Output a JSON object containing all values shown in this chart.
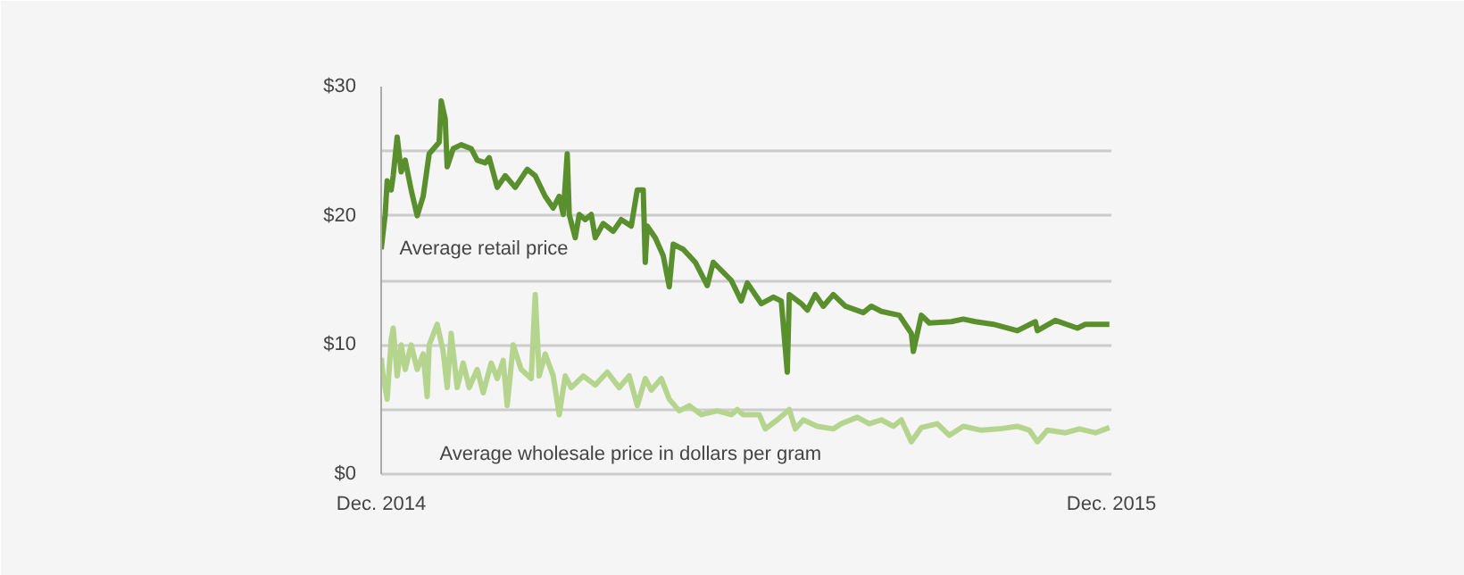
{
  "chart_data": {
    "type": "line",
    "xlim": [
      "2014-12-01",
      "2015-12-01"
    ],
    "xticks": [
      {
        "value": "2014-12-01",
        "label": "Dec. 2014"
      },
      {
        "value": "2015-12-01",
        "label": "Dec. 2015"
      }
    ],
    "ylim": [
      0,
      30
    ],
    "yticks": [
      {
        "value": 0,
        "label": "$0"
      },
      {
        "value": 5,
        "label": null
      },
      {
        "value": 10,
        "label": "$10"
      },
      {
        "value": 15,
        "label": null
      },
      {
        "value": 20,
        "label": "$20"
      },
      {
        "value": 25,
        "label": null
      },
      {
        "value": 30,
        "label": "$30"
      }
    ],
    "grid": "y",
    "marker": "none",
    "line_style": "solid",
    "series": [
      {
        "name": "Average retail price",
        "color": "#5a8f2e",
        "x": [
          "2014-12-01",
          "2014-12-03",
          "2014-12-04",
          "2014-12-06",
          "2014-12-07",
          "2014-12-09",
          "2014-12-11",
          "2014-12-13",
          "2014-12-16",
          "2014-12-19",
          "2014-12-22",
          "2014-12-25",
          "2014-12-30",
          "2014-12-31",
          "2015-01-02",
          "2015-01-03",
          "2015-01-06",
          "2015-01-10",
          "2015-01-15",
          "2015-01-18",
          "2015-01-22",
          "2015-01-24",
          "2015-01-28",
          "2015-02-01",
          "2015-02-06",
          "2015-02-12",
          "2015-02-16",
          "2015-02-21",
          "2015-02-25",
          "2015-02-28",
          "2015-03-02",
          "2015-03-04",
          "2015-03-05",
          "2015-03-08",
          "2015-03-10",
          "2015-03-13",
          "2015-03-16",
          "2015-03-18",
          "2015-03-22",
          "2015-03-27",
          "2015-03-31",
          "2015-04-05",
          "2015-04-08",
          "2015-04-11",
          "2015-04-12",
          "2015-04-13",
          "2015-04-17",
          "2015-04-21",
          "2015-04-24",
          "2015-04-26",
          "2015-05-01",
          "2015-05-07",
          "2015-05-13",
          "2015-05-16",
          "2015-05-25",
          "2015-05-30",
          "2015-06-02",
          "2015-06-09",
          "2015-06-15",
          "2015-06-19",
          "2015-06-22",
          "2015-06-23",
          "2015-06-29",
          "2015-07-02",
          "2015-07-06",
          "2015-07-10",
          "2015-07-15",
          "2015-07-21",
          "2015-07-30",
          "2015-08-03",
          "2015-08-08",
          "2015-08-17",
          "2015-08-23",
          "2015-08-24",
          "2015-08-28",
          "2015-09-01",
          "2015-09-12",
          "2015-09-18",
          "2015-09-24",
          "2015-10-03",
          "2015-10-15",
          "2015-10-24",
          "2015-10-25",
          "2015-11-03",
          "2015-11-14",
          "2015-11-18",
          "2015-11-30"
        ],
        "values": [
          17.4,
          20.1,
          22.7,
          22.0,
          23.1,
          26.1,
          23.4,
          24.3,
          22.0,
          20.0,
          21.5,
          24.8,
          25.7,
          28.9,
          27.5,
          23.8,
          25.2,
          25.5,
          25.2,
          24.3,
          24.1,
          24.5,
          22.2,
          23.1,
          22.2,
          23.6,
          23.1,
          21.5,
          20.6,
          21.5,
          20.1,
          24.8,
          20.1,
          18.3,
          20.1,
          19.7,
          20.1,
          18.3,
          19.4,
          18.8,
          19.7,
          19.2,
          22.0,
          22.0,
          16.4,
          19.2,
          18.3,
          16.9,
          14.5,
          17.8,
          17.4,
          16.4,
          14.6,
          16.4,
          15.0,
          13.4,
          14.8,
          13.2,
          13.7,
          13.4,
          7.9,
          13.9,
          13.2,
          12.7,
          13.9,
          13.0,
          13.9,
          13.0,
          12.5,
          13.0,
          12.6,
          12.3,
          10.9,
          9.5,
          12.3,
          11.7,
          11.8,
          12.0,
          11.8,
          11.6,
          11.1,
          11.8,
          11.1,
          11.9,
          11.3,
          11.6,
          11.6
        ]
      },
      {
        "name": "Average wholesale price in dollars per gram",
        "color": "#b5d58e",
        "x": [
          "2014-12-01",
          "2014-12-02",
          "2014-12-04",
          "2014-12-06",
          "2014-12-07",
          "2014-12-09",
          "2014-12-11",
          "2014-12-13",
          "2014-12-16",
          "2014-12-19",
          "2014-12-22",
          "2014-12-24",
          "2014-12-25",
          "2014-12-29",
          "2015-01-01",
          "2015-01-03",
          "2015-01-05",
          "2015-01-08",
          "2015-01-11",
          "2015-01-14",
          "2015-01-18",
          "2015-01-21",
          "2015-01-25",
          "2015-01-28",
          "2015-01-31",
          "2015-02-02",
          "2015-02-05",
          "2015-02-09",
          "2015-02-14",
          "2015-02-16",
          "2015-02-18",
          "2015-02-21",
          "2015-02-25",
          "2015-02-28",
          "2015-03-03",
          "2015-03-06",
          "2015-03-12",
          "2015-03-18",
          "2015-03-24",
          "2015-03-30",
          "2015-04-04",
          "2015-04-08",
          "2015-04-12",
          "2015-04-15",
          "2015-04-20",
          "2015-04-24",
          "2015-04-29",
          "2015-05-04",
          "2015-05-10",
          "2015-05-18",
          "2015-05-25",
          "2015-05-28",
          "2015-05-31",
          "2015-06-08",
          "2015-06-11",
          "2015-06-17",
          "2015-06-23",
          "2015-06-26",
          "2015-06-30",
          "2015-07-07",
          "2015-07-15",
          "2015-07-19",
          "2015-07-27",
          "2015-08-02",
          "2015-08-08",
          "2015-08-14",
          "2015-08-18",
          "2015-08-23",
          "2015-08-28",
          "2015-09-05",
          "2015-09-11",
          "2015-09-18",
          "2015-09-27",
          "2015-10-06",
          "2015-10-15",
          "2015-10-21",
          "2015-10-25",
          "2015-10-30",
          "2015-11-08",
          "2015-11-15",
          "2015-11-23",
          "2015-11-30"
        ],
        "values": [
          9.0,
          7.6,
          5.8,
          10.4,
          11.3,
          7.6,
          10.0,
          8.1,
          10.0,
          8.1,
          9.3,
          6.0,
          10.0,
          11.6,
          9.5,
          6.7,
          10.9,
          6.7,
          8.6,
          6.7,
          8.1,
          6.3,
          8.6,
          7.4,
          8.8,
          5.3,
          10.0,
          8.1,
          7.4,
          13.9,
          7.6,
          9.3,
          7.6,
          4.6,
          7.6,
          6.7,
          7.6,
          6.9,
          7.9,
          6.7,
          7.6,
          5.3,
          7.4,
          6.5,
          7.4,
          5.8,
          4.9,
          5.3,
          4.6,
          4.9,
          4.6,
          5.0,
          4.6,
          4.6,
          3.5,
          4.2,
          5.0,
          3.5,
          4.2,
          3.7,
          3.5,
          3.9,
          4.4,
          3.9,
          4.2,
          3.7,
          4.2,
          2.5,
          3.6,
          3.9,
          3.0,
          3.7,
          3.4,
          3.5,
          3.7,
          3.4,
          2.5,
          3.4,
          3.2,
          3.5,
          3.2,
          3.6
        ]
      }
    ]
  }
}
